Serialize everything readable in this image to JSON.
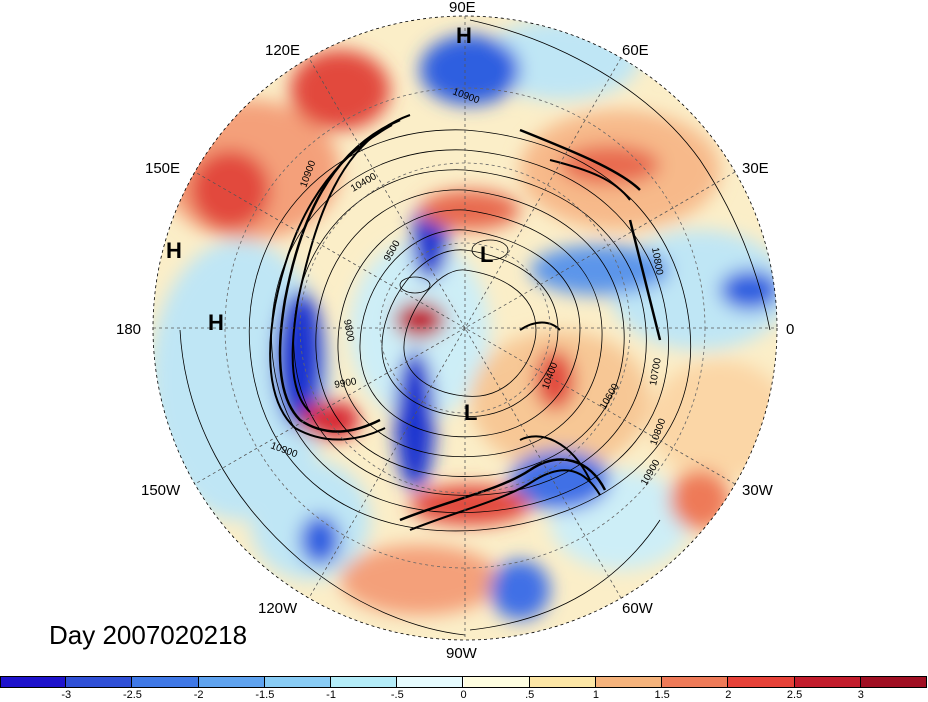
{
  "map": {
    "projection": "north-polar-stereographic",
    "longitude_labels": [
      {
        "text": "90E",
        "lon": 90
      },
      {
        "text": "60E",
        "lon": 60
      },
      {
        "text": "30E",
        "lon": 30
      },
      {
        "text": "0",
        "lon": 0
      },
      {
        "text": "30W",
        "lon": -30
      },
      {
        "text": "60W",
        "lon": -60
      },
      {
        "text": "90W",
        "lon": -90
      },
      {
        "text": "120W",
        "lon": -120
      },
      {
        "text": "150W",
        "lon": -150
      },
      {
        "text": "180",
        "lon": 180
      },
      {
        "text": "150E",
        "lon": 150
      },
      {
        "text": "120E",
        "lon": 120
      }
    ],
    "pressure_centers": [
      {
        "type": "H",
        "near": "Siberia (90E)"
      },
      {
        "type": "H",
        "near": "North Pacific (160E)"
      },
      {
        "type": "H",
        "near": "Date line (180)"
      },
      {
        "type": "L",
        "near": "Arctic Ocean"
      },
      {
        "type": "L",
        "near": "Hudson Bay"
      }
    ],
    "contour_labels": [
      "10900",
      "10400",
      "9500",
      "9800",
      "9900",
      "10900",
      "10900",
      "10800",
      "10700",
      "10600",
      "10400",
      "10800",
      "10900"
    ],
    "colors": {
      "strong_negative": "#1a1ad9",
      "negative": "#4d8fe6",
      "weak_negative": "#bdebf5",
      "weak_positive": "#fbe6b8",
      "positive": "#ee6a50",
      "strong_positive": "#c0182a",
      "contour": "#000000",
      "grid": "#666666"
    }
  },
  "title": {
    "day_text": "Day 2007020218"
  },
  "colorbar": {
    "colors": [
      "#1e12cc",
      "#2f4fd6",
      "#3f78e6",
      "#5fa3ef",
      "#89ccf5",
      "#b4ecf8",
      "#e6fbfe",
      "#fefde0",
      "#fce6a6",
      "#f5b37c",
      "#ee7a58",
      "#e64138",
      "#c21c2c",
      "#a00f22"
    ],
    "tick_labels": [
      "-3",
      "-2.5",
      "-2",
      "-1.5",
      "-1",
      "-.5",
      "0",
      ".5",
      "1",
      "1.5",
      "2",
      "2.5",
      "3"
    ]
  }
}
